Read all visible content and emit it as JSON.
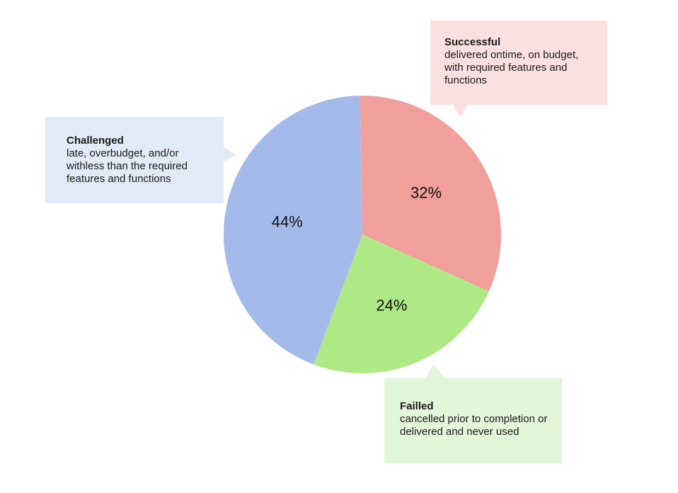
{
  "chart_data": {
    "type": "pie",
    "slices": [
      {
        "label": "Successful",
        "value": 32,
        "value_label": "32%",
        "description": "delivered ontime, on budget, with required features and functions",
        "color": "#f09f9a",
        "callout_color": "#fae0df"
      },
      {
        "label": "Failled",
        "value": 24,
        "value_label": "24%",
        "description": "cancelled prior to completion or delivered and never used",
        "color": "#aee986",
        "callout_color": "#e2f6d9"
      },
      {
        "label": "Challenged",
        "value": 44,
        "value_label": "44%",
        "description": "late, overbudget, and/or withless than the required features and functions",
        "color": "#a4baea",
        "callout_color": "#e2e9f7"
      }
    ]
  }
}
